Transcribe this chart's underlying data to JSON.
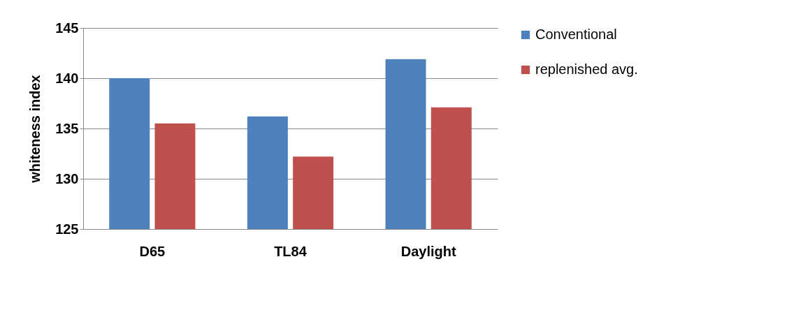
{
  "chart_data": {
    "type": "bar",
    "ylabel": "whiteness index",
    "categories": [
      "D65",
      "TL84",
      "Daylight"
    ],
    "series": [
      {
        "name": "Conventional",
        "color": "#4f81bd",
        "values": [
          140.0,
          136.2,
          141.9
        ]
      },
      {
        "name": "replenished avg.",
        "color": "#c0504d",
        "values": [
          135.5,
          132.2,
          137.1
        ]
      }
    ],
    "ylim": [
      125,
      145
    ],
    "yticks": [
      125,
      130,
      135,
      140,
      145
    ],
    "grid": "y",
    "legend": "right"
  }
}
